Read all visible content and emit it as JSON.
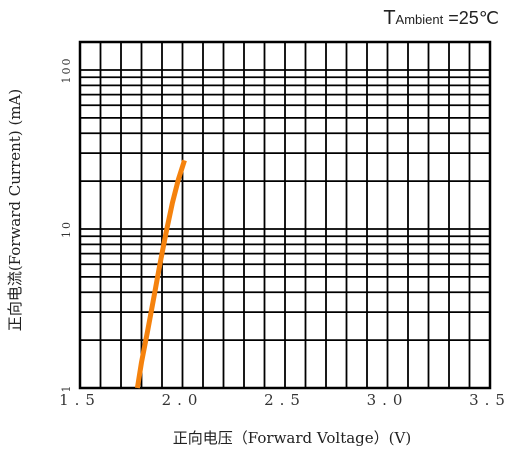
{
  "chart_data": {
    "type": "line",
    "title": "",
    "annotation": {
      "prefix": "T",
      "subscript": "Ambient",
      "suffix": " =25℃"
    },
    "xlabel": "正向电压（Forward Voltage）(V)",
    "ylabel": "正向电流(Forward Current) (mA)",
    "xlim": [
      1.5,
      3.5
    ],
    "ylim": [
      1,
      150
    ],
    "yscale": "log",
    "grid": true,
    "xticks": [
      {
        "value": 1.5,
        "label": "1.5"
      },
      {
        "value": 2.0,
        "label": "2.0"
      },
      {
        "value": 2.5,
        "label": "2.5"
      },
      {
        "value": 3.0,
        "label": "3.0"
      },
      {
        "value": 3.5,
        "label": "3.5"
      }
    ],
    "yticks": [
      {
        "value": 1,
        "label": "1"
      },
      {
        "value": 10,
        "label": "10"
      },
      {
        "value": 100,
        "label": "100"
      }
    ],
    "series": [
      {
        "color": "#F5820D",
        "x": [
          1.78,
          1.8,
          1.83,
          1.86,
          1.89,
          1.92,
          1.95,
          1.98,
          2.01
        ],
        "y": [
          1.0,
          1.45,
          2.3,
          3.7,
          6.0,
          9.5,
          14.5,
          20.5,
          27
        ]
      }
    ]
  }
}
